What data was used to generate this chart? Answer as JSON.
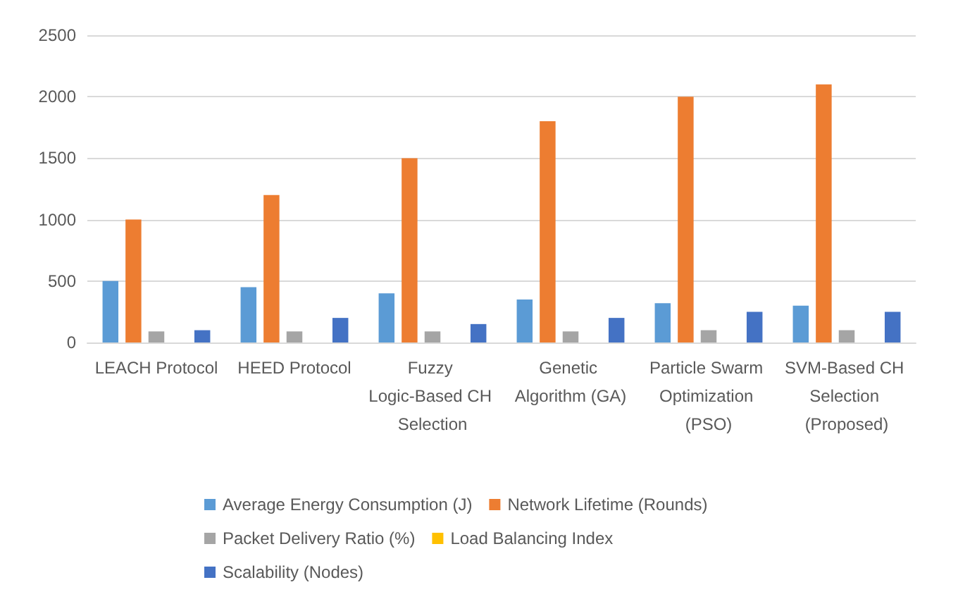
{
  "chart_data": {
    "type": "bar",
    "categories": [
      "LEACH Protocol",
      "HEED Protocol",
      "Fuzzy Logic-Based CH Selection",
      "Genetic Algorithm (GA)",
      "Particle Swarm Optimization (PSO)",
      "SVM-Based CH Selection (Proposed)"
    ],
    "series": [
      {
        "name": "Average Energy Consumption (J)",
        "color": "#5b9bd5",
        "values": [
          500,
          450,
          400,
          350,
          320,
          300
        ]
      },
      {
        "name": "Network Lifetime (Rounds)",
        "color": "#ed7d31",
        "values": [
          1000,
          1200,
          1500,
          1800,
          2000,
          2100
        ]
      },
      {
        "name": "Packet Delivery Ratio (%)",
        "color": "#a5a5a5",
        "values": [
          90,
          90,
          90,
          90,
          100,
          100
        ]
      },
      {
        "name": "Load Balancing Index",
        "color": "#ffc000",
        "values": [
          0,
          0,
          0,
          0,
          0,
          0
        ]
      },
      {
        "name": "Scalability (Nodes)",
        "color": "#4472c4",
        "values": [
          100,
          200,
          150,
          200,
          250,
          250
        ]
      }
    ],
    "ylim": [
      0,
      2500
    ],
    "yticks": [
      0,
      500,
      1000,
      1500,
      2000,
      2500
    ],
    "grid": "y",
    "legend": "bottom"
  }
}
